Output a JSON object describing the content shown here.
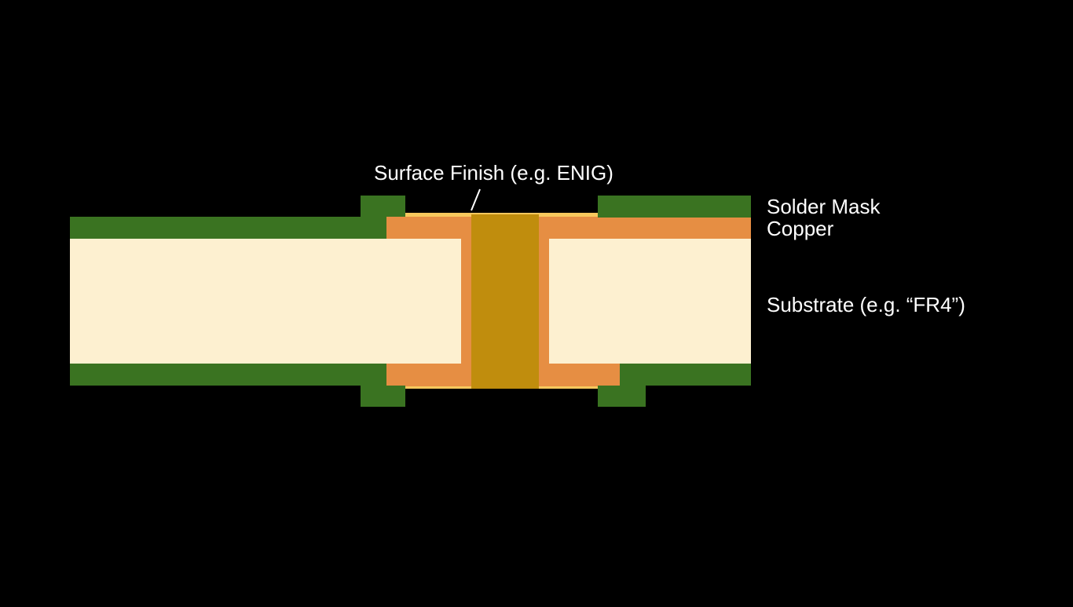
{
  "labels": {
    "surface_finish": "Surface Finish (e.g. ENIG)",
    "solder_mask": "Solder Mask",
    "copper": "Copper",
    "substrate": "Substrate (e.g. “FR4”)"
  },
  "colors": {
    "background": "#000000",
    "solder_mask": "#3a7321",
    "copper": "#e68e43",
    "substrate": "#fdf0d0",
    "surface_finish": "#f7c85d",
    "via_fill": "#c08d0d",
    "label_text": "#ffffff"
  }
}
